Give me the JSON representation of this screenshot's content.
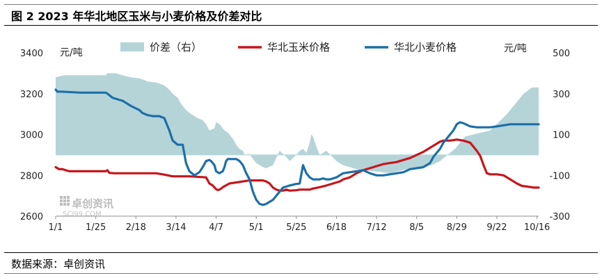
{
  "figure": {
    "title": "图 2 2023 年华北地区玉米与小麦价格及价差对比",
    "source": "数据来源：卓创资讯",
    "watermark": {
      "name": "卓创资讯",
      "site": "SCI99.COM"
    }
  },
  "colors": {
    "spread_fill": "#b5d4d8",
    "corn": "#c8151b",
    "wheat": "#1c6fa8",
    "watermark": "#bdbdbd"
  },
  "chart_data": {
    "type": "line",
    "left_axis": {
      "unit": "元/吨",
      "ylim": [
        2600,
        3400
      ],
      "ticks": [
        2600,
        2800,
        3000,
        3200,
        3400
      ]
    },
    "right_axis": {
      "unit": "元/吨",
      "ylim": [
        -300,
        500
      ],
      "ticks": [
        -300,
        -100,
        100,
        300,
        500
      ]
    },
    "x_axis": {
      "range_days": [
        0,
        289
      ],
      "ticks": [
        {
          "label": "1/1",
          "day": 0
        },
        {
          "label": "1/25",
          "day": 24
        },
        {
          "label": "2/18",
          "day": 48
        },
        {
          "label": "3/14",
          "day": 72
        },
        {
          "label": "4/7",
          "day": 96
        },
        {
          "label": "5/1",
          "day": 120
        },
        {
          "label": "5/25",
          "day": 144
        },
        {
          "label": "6/18",
          "day": 168
        },
        {
          "label": "7/12",
          "day": 192
        },
        {
          "label": "8/5",
          "day": 216
        },
        {
          "label": "8/29",
          "day": 240
        },
        {
          "label": "9/22",
          "day": 264
        },
        {
          "label": "10/16",
          "day": 288
        }
      ]
    },
    "legend": {
      "placement": "top",
      "items": [
        "价差（右）",
        "华北玉米价格",
        "华北小麦价格"
      ]
    },
    "series": [
      {
        "name": "价差（右）",
        "kind": "area",
        "axis": "right",
        "day": [
          0,
          5,
          15,
          30,
          31,
          34,
          36,
          40,
          45,
          50,
          52,
          55,
          60,
          62,
          65,
          68,
          70,
          73,
          75,
          78,
          81,
          85,
          88,
          90,
          92,
          95,
          96,
          98,
          101,
          103,
          106,
          108,
          110,
          112,
          113,
          116,
          118,
          120,
          122,
          124,
          126,
          130,
          134,
          138,
          140,
          144,
          146,
          148,
          150,
          152,
          153,
          154,
          156,
          158,
          160,
          162,
          165,
          168,
          172,
          176,
          180,
          185,
          190,
          195,
          200,
          205,
          210,
          215,
          220,
          225,
          230,
          233,
          236,
          239,
          241,
          243,
          245,
          250,
          255,
          260,
          265,
          270,
          275,
          280,
          285,
          289
        ],
        "value": [
          380,
          390,
          390,
          390,
          400,
          400,
          400,
          390,
          380,
          375,
          370,
          360,
          355,
          350,
          340,
          320,
          300,
          280,
          250,
          220,
          200,
          180,
          170,
          150,
          120,
          130,
          160,
          150,
          120,
          110,
          80,
          50,
          30,
          20,
          0,
          5,
          -20,
          -40,
          -50,
          -60,
          -65,
          -50,
          20,
          -10,
          -30,
          0,
          20,
          30,
          10,
          60,
          100,
          90,
          40,
          0,
          10,
          20,
          -5,
          -30,
          -50,
          -60,
          -70,
          -75,
          -80,
          -85,
          -90,
          -80,
          -70,
          -60,
          -60,
          -50,
          -30,
          -10,
          10,
          30,
          50,
          70,
          90,
          100,
          110,
          120,
          160,
          200,
          250,
          300,
          330,
          330
        ]
      },
      {
        "name": "华北玉米价格",
        "kind": "line",
        "axis": "left",
        "day": [
          0,
          2,
          4,
          8,
          20,
          30,
          31,
          32,
          35,
          40,
          50,
          60,
          64,
          70,
          80,
          90,
          91,
          92,
          94,
          96,
          97,
          98,
          99,
          100,
          104,
          108,
          112,
          116,
          120,
          124,
          126,
          128,
          130,
          132,
          134,
          136,
          138,
          140,
          144,
          146,
          148,
          150,
          152,
          154,
          158,
          162,
          166,
          168,
          170,
          172,
          176,
          180,
          184,
          188,
          192,
          196,
          200,
          204,
          208,
          212,
          216,
          220,
          224,
          228,
          230,
          232,
          234,
          236,
          240,
          244,
          248,
          250,
          252,
          254,
          256,
          258,
          260,
          264,
          268,
          272,
          276,
          279,
          282,
          286,
          289
        ],
        "value": [
          2840,
          2830,
          2830,
          2820,
          2820,
          2820,
          2825,
          2812,
          2810,
          2810,
          2810,
          2810,
          2805,
          2795,
          2795,
          2790,
          2775,
          2760,
          2750,
          2732,
          2728,
          2730,
          2735,
          2742,
          2760,
          2765,
          2770,
          2775,
          2775,
          2775,
          2770,
          2760,
          2740,
          2730,
          2725,
          2725,
          2730,
          2725,
          2727,
          2730,
          2730,
          2730,
          2730,
          2735,
          2742,
          2750,
          2760,
          2765,
          2770,
          2780,
          2790,
          2810,
          2825,
          2835,
          2845,
          2855,
          2860,
          2865,
          2875,
          2885,
          2900,
          2915,
          2935,
          2955,
          2965,
          2970,
          2970,
          2970,
          2975,
          2970,
          2960,
          2940,
          2920,
          2895,
          2850,
          2810,
          2805,
          2805,
          2800,
          2780,
          2760,
          2748,
          2745,
          2740,
          2740
        ]
      },
      {
        "name": "华北小麦价格",
        "kind": "line",
        "axis": "left",
        "day": [
          0,
          1,
          3,
          15,
          25,
          30,
          31,
          34,
          38,
          40,
          45,
          50,
          52,
          55,
          58,
          62,
          65,
          68,
          70,
          73,
          76,
          78,
          80,
          83,
          86,
          88,
          90,
          92,
          93,
          95,
          96,
          98,
          100,
          101,
          102,
          103,
          104,
          106,
          108,
          109,
          110,
          112,
          114,
          116,
          118,
          120,
          122,
          124,
          126,
          128,
          130,
          132,
          134,
          136,
          138,
          140,
          144,
          146,
          148,
          150,
          152,
          154,
          156,
          158,
          160,
          162,
          164,
          166,
          168,
          170,
          172,
          176,
          180,
          184,
          188,
          192,
          196,
          200,
          204,
          208,
          212,
          216,
          220,
          224,
          226,
          228,
          230,
          232,
          234,
          236,
          238,
          239,
          240,
          242,
          244,
          248,
          252,
          256,
          260,
          264,
          268,
          272,
          276,
          280,
          284,
          289
        ],
        "value": [
          3220,
          3210,
          3210,
          3205,
          3205,
          3205,
          3200,
          3180,
          3170,
          3165,
          3140,
          3120,
          3105,
          3095,
          3090,
          3090,
          3080,
          3020,
          2970,
          2950,
          2950,
          2860,
          2820,
          2800,
          2815,
          2840,
          2870,
          2875,
          2870,
          2850,
          2820,
          2810,
          2820,
          2840,
          2870,
          2880,
          2880,
          2880,
          2880,
          2875,
          2870,
          2850,
          2810,
          2780,
          2720,
          2680,
          2660,
          2655,
          2660,
          2670,
          2680,
          2700,
          2720,
          2740,
          2745,
          2750,
          2758,
          2760,
          2850,
          2810,
          2790,
          2780,
          2780,
          2780,
          2785,
          2780,
          2780,
          2785,
          2790,
          2800,
          2810,
          2815,
          2820,
          2825,
          2810,
          2800,
          2800,
          2805,
          2810,
          2815,
          2830,
          2835,
          2840,
          2860,
          2890,
          2910,
          2930,
          2960,
          2980,
          3000,
          3020,
          3035,
          3050,
          3060,
          3055,
          3040,
          3035,
          3035,
          3035,
          3040,
          3045,
          3050,
          3050,
          3050,
          3050,
          3050
        ]
      }
    ]
  }
}
